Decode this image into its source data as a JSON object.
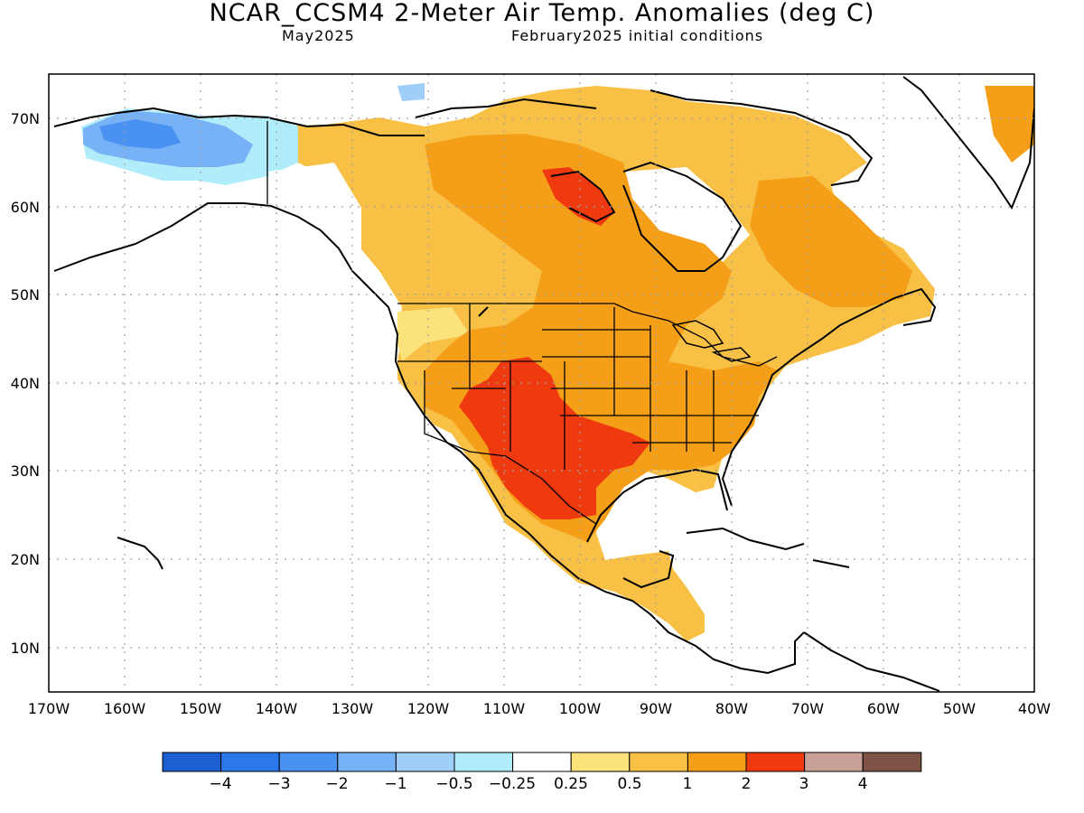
{
  "title": "NCAR_CCSM4 2-Meter Air Temp. Anomalies (deg C)",
  "subtitle_left": "May2025",
  "subtitle_right": "February2025 initial conditions",
  "colors": {
    "ocean": "#ffffff",
    "coast": "#000000",
    "grid": "#a0a0a0"
  },
  "lat_labels": [
    "70N",
    "60N",
    "50N",
    "40N",
    "30N",
    "20N",
    "10N"
  ],
  "lon_labels": [
    "170W",
    "160W",
    "150W",
    "140W",
    "130W",
    "120W",
    "110W",
    "100W",
    "90W",
    "80W",
    "70W",
    "60W",
    "50W",
    "40W"
  ],
  "colorbar": {
    "colors": [
      "#1c5fd0",
      "#2a78ea",
      "#4a92f2",
      "#76b2f5",
      "#9fcef8",
      "#b0ecfa",
      "#ffffff",
      "#fbe27a",
      "#f8c146",
      "#f59f18",
      "#ef3a10",
      "#c8a095",
      "#7f5246"
    ],
    "labels": [
      "−4",
      "−3",
      "−2",
      "−1",
      "−0.5",
      "−0.25",
      "0.25",
      "0.5",
      "1",
      "2",
      "3",
      "4"
    ]
  }
}
